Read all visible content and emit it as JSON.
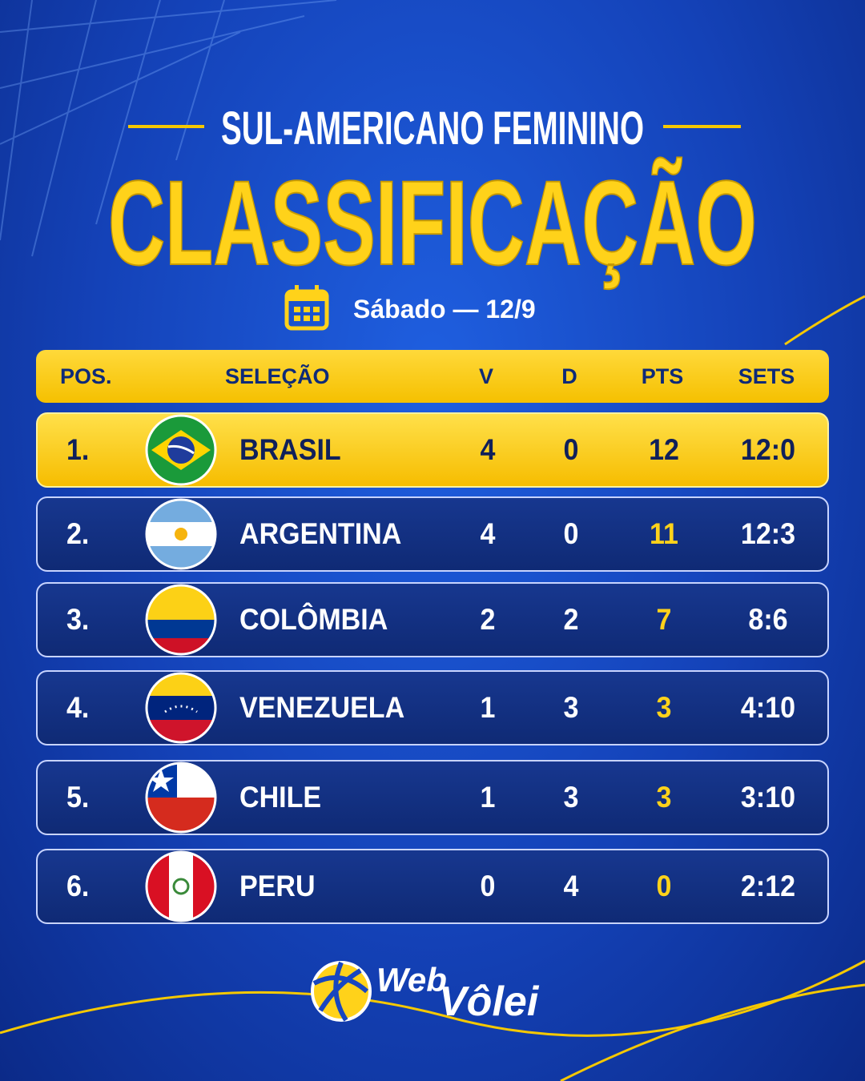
{
  "header": {
    "subtitle": "SUL-AMERICANO FEMININO",
    "title": "CLASSIFICAÇÃO",
    "date": "Sábado — 12/9"
  },
  "table": {
    "columns": [
      "POS.",
      "SELEÇÃO",
      "V",
      "D",
      "PTS",
      "SETS"
    ],
    "rows": [
      [
        "1.",
        "BRASIL",
        4,
        0,
        12,
        "12:0"
      ],
      [
        "2.",
        "ARGENTINA",
        4,
        0,
        11,
        "12:3"
      ],
      [
        "3.",
        "COLÔMBIA",
        2,
        2,
        7,
        "8:6"
      ],
      [
        "4.",
        "VENEZUELA",
        1,
        3,
        3,
        "4:10"
      ],
      [
        "5.",
        "CHILE",
        1,
        3,
        3,
        "3:10"
      ],
      [
        "6.",
        "PERU",
        0,
        4,
        0,
        "2:12"
      ]
    ]
  },
  "footer": {
    "logo_top": "Web",
    "logo_bottom": "Vôlei"
  }
}
